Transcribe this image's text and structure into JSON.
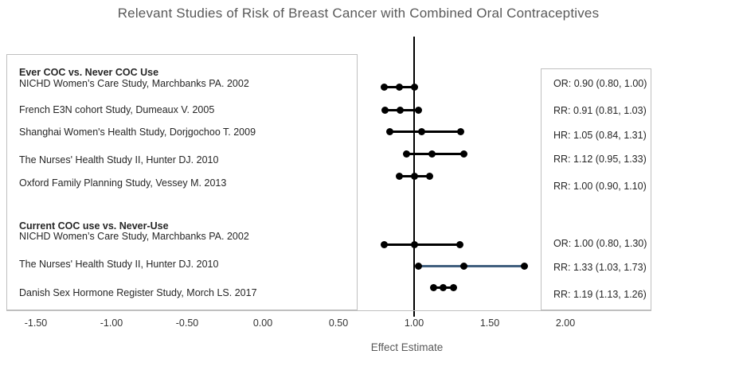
{
  "title": "Relevant Studies of Risk of Breast Cancer with Combined Oral Contraceptives",
  "colors": {
    "accent_line": "#405f7e",
    "marker": "#000000",
    "panel_border": "#bfbfbf",
    "muted_text": "#595959",
    "text": "#262626"
  },
  "chart_data": {
    "type": "scatter",
    "subtype": "forest-plot",
    "title": "Relevant Studies of Risk of Breast Cancer with Combined Oral Contraceptives",
    "xlabel": "Effect Estimate",
    "x_tick_labels": [
      "-1.50",
      "-1.00",
      "-0.50",
      "0.00",
      "0.50",
      "1.00",
      "1.50",
      "2.00"
    ],
    "x_tick_values": [
      -1.5,
      -1.0,
      -0.5,
      0.0,
      0.5,
      1.0,
      1.5,
      2.0
    ],
    "xlim": [
      -1.7,
      2.57
    ],
    "reference_line_x": 1.0,
    "grid": false,
    "rows": [
      {
        "kind": "header",
        "label": "Ever COC vs. Never COC Use"
      },
      {
        "kind": "study",
        "label": "NICHD Women’s Care Study, Marchbanks PA. 2002",
        "measure": "OR",
        "est": 0.9,
        "lo": 0.8,
        "hi": 1.0,
        "value_text": "OR: 0.90 (0.80, 1.00)",
        "line_color": "#000000"
      },
      {
        "kind": "study",
        "label": "French E3N cohort Study, Dumeaux V. 2005",
        "measure": "RR",
        "est": 0.91,
        "lo": 0.81,
        "hi": 1.03,
        "value_text": "RR: 0.91 (0.81, 1.03)",
        "line_color": "#000000"
      },
      {
        "kind": "study",
        "label": "Shanghai Women's Health Study, Dorjgochoo T. 2009",
        "measure": "HR",
        "est": 1.05,
        "lo": 0.84,
        "hi": 1.31,
        "value_text": "HR: 1.05 (0.84, 1.31)",
        "line_color": "#000000"
      },
      {
        "kind": "study",
        "label": "The Nurses' Health Study II, Hunter DJ. 2010",
        "measure": "RR",
        "est": 1.12,
        "lo": 0.95,
        "hi": 1.33,
        "value_text": "RR: 1.12 (0.95, 1.33)",
        "line_color": "#000000"
      },
      {
        "kind": "study",
        "label": "Oxford Family Planning Study, Vessey M. 2013",
        "measure": "RR",
        "est": 1.0,
        "lo": 0.9,
        "hi": 1.1,
        "value_text": "RR: 1.00 (0.90, 1.10)",
        "line_color": "#000000"
      },
      {
        "kind": "header",
        "label": "Current COC use vs. Never-Use"
      },
      {
        "kind": "study",
        "label": "NICHD Women’s Care Study, Marchbanks PA. 2002",
        "measure": "OR",
        "est": 1.0,
        "lo": 0.8,
        "hi": 1.3,
        "value_text": "OR: 1.00 (0.80, 1.30)",
        "line_color": "#000000"
      },
      {
        "kind": "study",
        "label": "The Nurses' Health Study II, Hunter DJ. 2010",
        "measure": "RR",
        "est": 1.33,
        "lo": 1.03,
        "hi": 1.73,
        "value_text": "RR: 1.33 (1.03, 1.73)",
        "line_color": "#405f7e"
      },
      {
        "kind": "study",
        "label": "Danish Sex Hormone Register Study, Morch LS. 2017",
        "measure": "RR",
        "est": 1.19,
        "lo": 1.13,
        "hi": 1.26,
        "value_text": "RR: 1.19 (1.13, 1.26)",
        "line_color": "#000000"
      }
    ]
  }
}
